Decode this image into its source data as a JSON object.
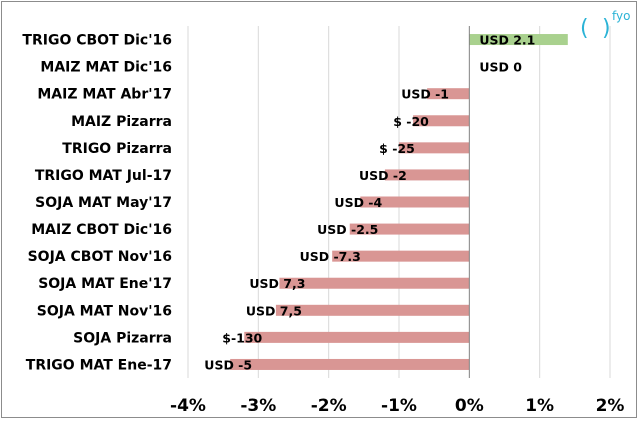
{
  "logo": {
    "text": "fyo",
    "paren_open": "(",
    "paren_close": ")"
  },
  "chart_data": {
    "type": "bar",
    "orientation": "horizontal",
    "categories": [
      "TRIGO CBOT Dic'16",
      "MAIZ MAT Dic'16",
      "MAIZ MAT Abr'17",
      "MAIZ Pizarra",
      "TRIGO Pizarra",
      "TRIGO MAT Jul-17",
      "SOJA MAT May'17",
      "MAIZ CBOT Dic'16",
      "SOJA CBOT Nov'16",
      "SOJA MAT Ene'17",
      "SOJA MAT Nov'16",
      "SOJA Pizarra",
      "TRIGO MAT Ene-17"
    ],
    "values": [
      1.4,
      0.0,
      -0.6,
      -0.8,
      -1.0,
      -1.2,
      -1.55,
      -1.7,
      -1.95,
      -2.7,
      -2.75,
      -3.2,
      -3.4
    ],
    "data_labels": [
      "USD 2.1",
      "USD 0",
      "USD -1",
      "$ -20",
      "$ -25",
      "USD -2",
      "USD -4",
      "USD -2.5",
      "USD -7.3",
      "USD 7,3",
      "USD 7,5",
      "$-130",
      "USD -5"
    ],
    "unit": "%",
    "xlim": [
      -4,
      2
    ],
    "xticks": [
      "-4%",
      "-3%",
      "-2%",
      "-1%",
      "0%",
      "1%",
      "2%"
    ],
    "xtick_values": [
      -4,
      -3,
      -2,
      -1,
      0,
      1,
      2
    ],
    "grid": "vertical",
    "legend": "none",
    "colors": {
      "positive": "#a9d18e",
      "negative": "#d99694",
      "grid": "#d9d9d9",
      "axis": "#808080"
    }
  }
}
